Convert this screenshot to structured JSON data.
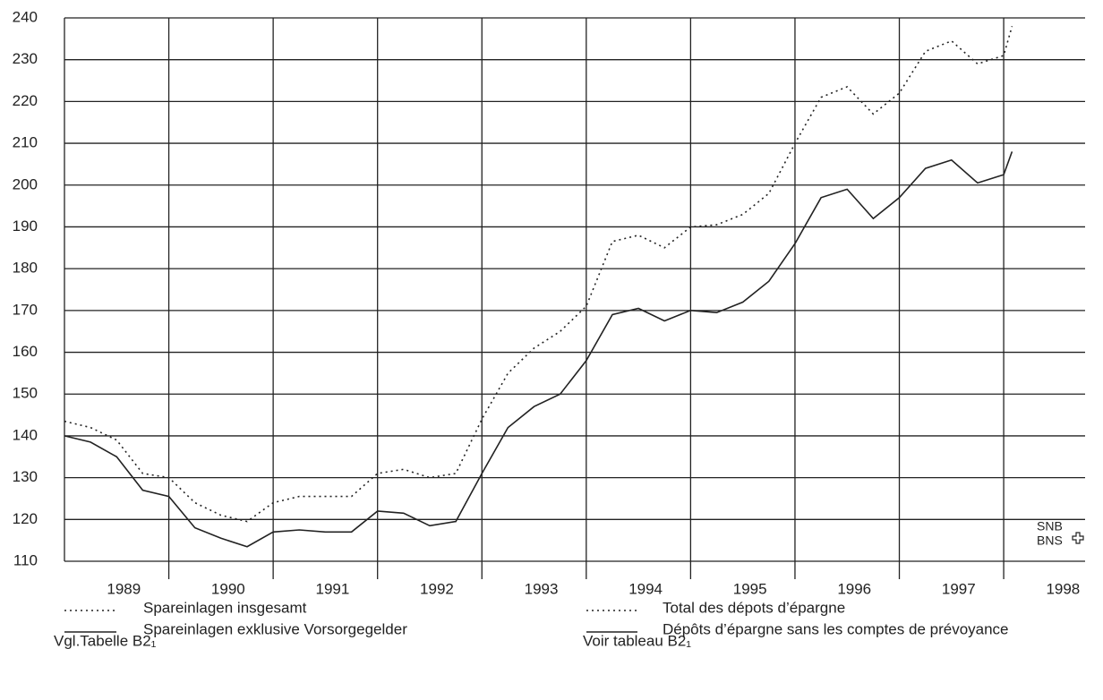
{
  "chart_data": {
    "type": "line",
    "x": [
      1989.0,
      1989.25,
      1989.5,
      1989.75,
      1990.0,
      1990.25,
      1990.5,
      1990.75,
      1991.0,
      1991.25,
      1991.5,
      1991.75,
      1992.0,
      1992.25,
      1992.5,
      1992.75,
      1993.0,
      1993.25,
      1993.5,
      1993.75,
      1994.0,
      1994.25,
      1994.5,
      1994.75,
      1995.0,
      1995.25,
      1995.5,
      1995.75,
      1996.0,
      1996.25,
      1996.5,
      1996.75,
      1997.0,
      1997.25,
      1997.5,
      1997.75,
      1998.0,
      1998.08
    ],
    "series": [
      {
        "name": "Spareinlagen insgesamt",
        "color": "#222222",
        "dash": "2,4",
        "values": [
          143.5,
          142,
          139,
          131,
          130,
          124,
          121,
          119.5,
          124,
          125.5,
          125.5,
          125.5,
          131,
          132,
          130,
          131,
          144,
          155,
          161,
          165,
          171,
          186.5,
          188,
          185,
          190,
          190.5,
          193,
          198,
          210,
          221,
          223.5,
          217,
          222,
          232,
          234.5,
          229,
          231,
          238
        ]
      },
      {
        "name": "Spareinlagen exklusive Vorsorgegelder",
        "color": "#222222",
        "dash": "none",
        "values": [
          140,
          138.5,
          135,
          127,
          125.5,
          118,
          115.5,
          113.5,
          117,
          117.5,
          117,
          117,
          122,
          121.5,
          118.5,
          119.5,
          131,
          142,
          147,
          150,
          158,
          169,
          170.5,
          167.5,
          170,
          169.5,
          172,
          177,
          186,
          197,
          199,
          192,
          197,
          204,
          206,
          200.5,
          202.5,
          208
        ]
      }
    ],
    "legend_fr": [
      "Total des dépots d’épargne",
      "Dépôts d’épargne sans les comptes de prévoyance"
    ],
    "note_de": "Vgl.Tabelle B2₁",
    "note_fr": "Voir tableau B2₁",
    "logo": [
      "SNB",
      "BNS"
    ],
    "xlim": [
      1989,
      1998.78
    ],
    "xticks": [
      {
        "value": 1989.5,
        "label": "1989"
      },
      {
        "value": 1990.5,
        "label": "1990"
      },
      {
        "value": 1991.5,
        "label": "1991"
      },
      {
        "value": 1992.5,
        "label": "1992"
      },
      {
        "value": 1993.5,
        "label": "1993"
      },
      {
        "value": 1994.5,
        "label": "1994"
      },
      {
        "value": 1995.5,
        "label": "1995"
      },
      {
        "value": 1996.5,
        "label": "1996"
      },
      {
        "value": 1997.5,
        "label": "1997"
      },
      {
        "value": 1998.5,
        "label": "1998"
      }
    ],
    "xgrid": [
      1990,
      1991,
      1992,
      1993,
      1994,
      1995,
      1996,
      1997,
      1998
    ],
    "ylim": [
      110,
      240
    ],
    "yticks": [
      110,
      120,
      130,
      140,
      150,
      160,
      170,
      180,
      190,
      200,
      210,
      220,
      230,
      240
    ],
    "grid": true
  }
}
